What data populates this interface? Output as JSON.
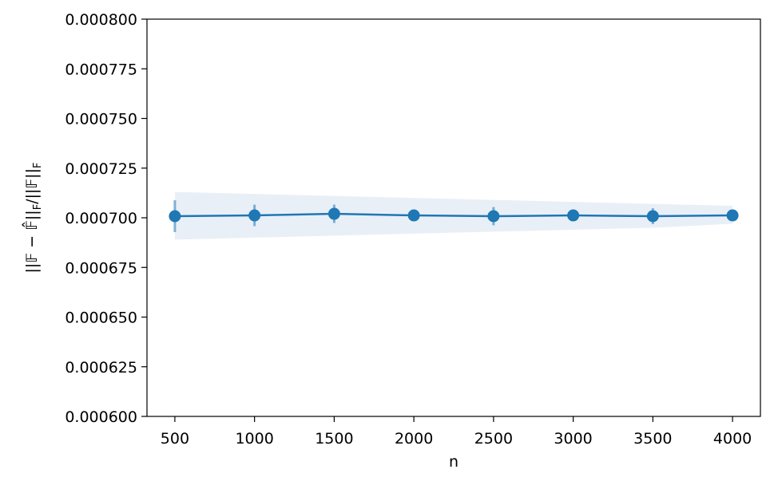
{
  "chart_data": {
    "type": "line",
    "xlabel": "n",
    "ylabel": [
      {
        "text": "||𝔽 − 𝔽̂||"
      },
      {
        "text": "F",
        "sub": true
      },
      {
        "text": "/||𝔽||"
      },
      {
        "text": "F",
        "sub": true
      }
    ],
    "x": [
      500,
      1000,
      1500,
      2000,
      2500,
      3000,
      3500,
      4000
    ],
    "series": [
      {
        "color": "#1f77b4",
        "values": [
          0.0007008,
          0.0007012,
          0.000702,
          0.0007012,
          0.0007008,
          0.0007012,
          0.0007008,
          0.0007012
        ],
        "errors": [
          8e-06,
          5.4e-06,
          4.6e-06,
          2.4e-06,
          4.6e-06,
          1.6e-06,
          4e-06,
          1.6e-06
        ]
      }
    ],
    "band": {
      "color": "#e9eff7",
      "upper": [
        0.000713,
        0.000712,
        0.000711,
        0.00071,
        0.000709,
        0.000708,
        0.000707,
        0.000706
      ],
      "lower": [
        0.000689,
        0.00069,
        0.000691,
        0.000692,
        0.000693,
        0.000694,
        0.000695,
        0.000697
      ]
    },
    "xlim": [
      325,
      4175
    ],
    "ylim": [
      0.0006,
      0.0008
    ],
    "xticks": [
      500,
      1000,
      1500,
      2000,
      2500,
      3000,
      3500,
      4000
    ],
    "yticks": [
      {
        "value": 0.0006,
        "label": "0.000600"
      },
      {
        "value": 0.000625,
        "label": "0.000625"
      },
      {
        "value": 0.00065,
        "label": "0.000650"
      },
      {
        "value": 0.000675,
        "label": "0.000675"
      },
      {
        "value": 0.0007,
        "label": "0.000700"
      },
      {
        "value": 0.000725,
        "label": "0.000725"
      },
      {
        "value": 0.00075,
        "label": "0.000750"
      },
      {
        "value": 0.000775,
        "label": "0.000775"
      },
      {
        "value": 0.0008,
        "label": "0.000800"
      }
    ]
  }
}
